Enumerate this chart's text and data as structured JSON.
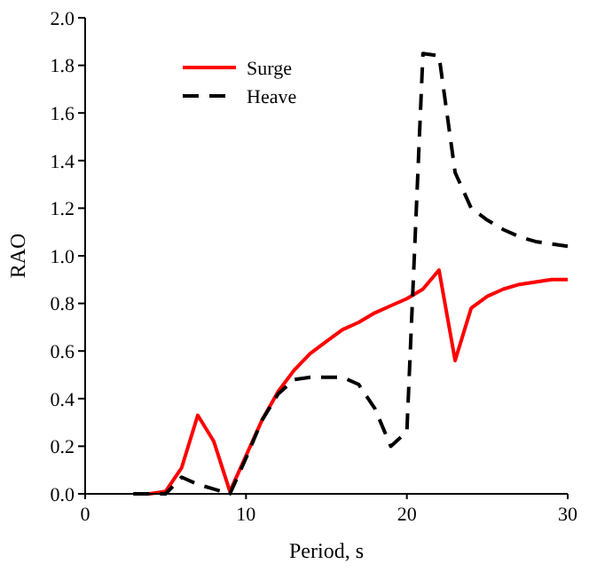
{
  "chart_data": {
    "type": "line",
    "xlabel": "Period, s",
    "ylabel": "RAO",
    "xlim": [
      0,
      30
    ],
    "ylim": [
      0,
      2.0
    ],
    "xticks": [
      0,
      10,
      20,
      30
    ],
    "yticks": [
      {
        "value": 0,
        "label": "0.0"
      },
      {
        "value": 0.2,
        "label": "0.2"
      },
      {
        "value": 0.4,
        "label": "0.4"
      },
      {
        "value": 0.6,
        "label": "0.6"
      },
      {
        "value": 0.8,
        "label": "0.8"
      },
      {
        "value": 1.0,
        "label": "1.0"
      },
      {
        "value": 1.2,
        "label": "1.2"
      },
      {
        "value": 1.4,
        "label": "1.4"
      },
      {
        "value": 1.6,
        "label": "1.6"
      },
      {
        "value": 1.8,
        "label": "1.8"
      },
      {
        "value": 2.0,
        "label": "2.0"
      }
    ],
    "legend": "top left",
    "grid": false,
    "series": [
      {
        "name": "Surge",
        "color": "#ff0000",
        "line_style": "solid",
        "x": [
          3,
          4,
          5,
          6,
          7,
          8,
          9,
          10,
          11,
          12,
          13,
          14,
          15,
          16,
          17,
          18,
          19,
          20,
          21,
          22,
          23,
          24,
          25,
          26,
          27,
          28,
          29,
          30
        ],
        "values": [
          0,
          0,
          0.01,
          0.11,
          0.33,
          0.22,
          0.01,
          0.16,
          0.31,
          0.43,
          0.52,
          0.59,
          0.64,
          0.69,
          0.72,
          0.76,
          0.79,
          0.82,
          0.86,
          0.94,
          0.56,
          0.78,
          0.83,
          0.86,
          0.88,
          0.89,
          0.9,
          0.9
        ]
      },
      {
        "name": "Heave",
        "color": "#000000",
        "line_style": "dashed",
        "x": [
          3,
          5,
          6,
          7,
          8,
          9,
          10,
          11,
          12,
          13,
          14,
          15,
          16,
          17,
          18,
          19,
          20,
          21,
          22,
          23,
          24,
          25,
          26,
          27,
          28,
          29,
          30
        ],
        "values": [
          0,
          0,
          0.07,
          0.04,
          0.02,
          0,
          0.15,
          0.31,
          0.42,
          0.48,
          0.49,
          0.49,
          0.49,
          0.46,
          0.36,
          0.2,
          0.26,
          1.85,
          1.84,
          1.35,
          1.2,
          1.15,
          1.11,
          1.08,
          1.06,
          1.05,
          1.04
        ]
      }
    ]
  }
}
